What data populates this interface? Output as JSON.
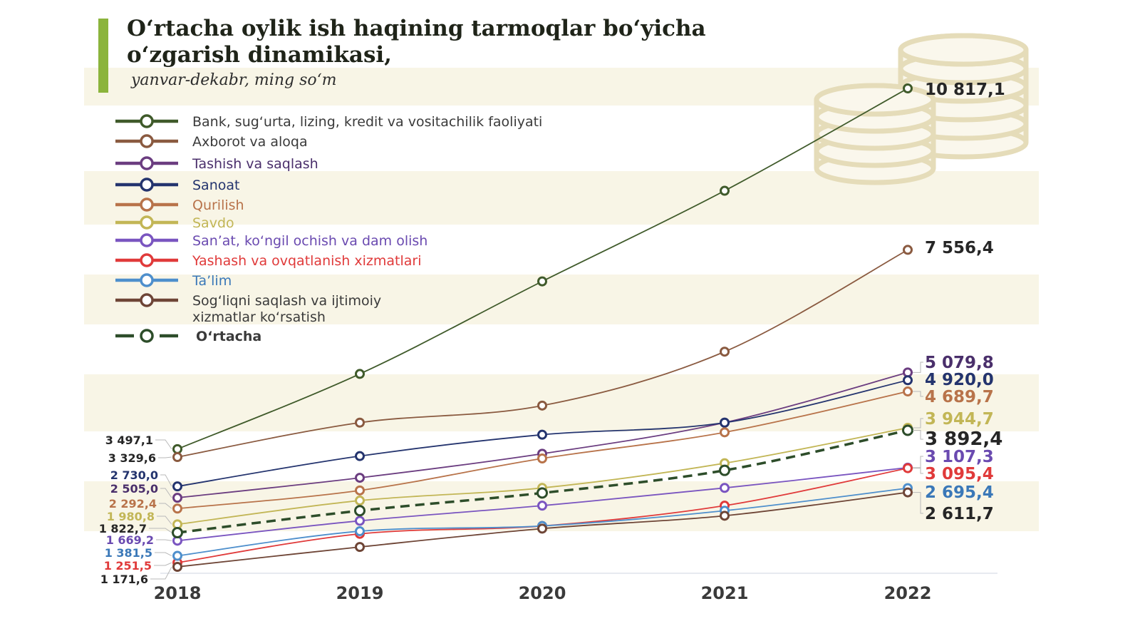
{
  "title": "O‘rtacha oylik ish haqining tarmoqlar bo‘yicha o‘zgarish dinamikasi,",
  "subtitle": "yanvar-dekabr, ming so‘m",
  "chart_data": {
    "type": "line",
    "title": "O‘rtacha oylik ish haqining tarmoqlar bo‘yicha o‘zgarish dinamikasi,",
    "subtitle": "yanvar-dekabr, ming so‘m",
    "xlabel": "",
    "ylabel": "",
    "x": [
      "2018",
      "2019",
      "2020",
      "2021",
      "2022"
    ],
    "ylim": [
      1100,
      11000
    ],
    "grid": false,
    "legend_position": "top-left",
    "series": [
      {
        "name": "Bank, sug‘urta, lizing, kredit va vositachilik faoliyati",
        "color": "#3f5a2a",
        "label_color": "#262626",
        "dashed": false,
        "values": [
          3497.1,
          5050,
          6920,
          8750,
          10817.1
        ],
        "label_start": "3 497,1",
        "label_end": "10 817,1"
      },
      {
        "name": "Axborot va aloqa",
        "color": "#8a5a40",
        "label_color": "#262626",
        "dashed": false,
        "values": [
          3329.6,
          4050,
          4400,
          5500,
          7556.4
        ],
        "label_start": "3 329,6",
        "label_end": "7 556,4"
      },
      {
        "name": "Tashish va saqlash",
        "color": "#6b3d80",
        "label_color": "#4a2f6b",
        "dashed": false,
        "values": [
          2505.0,
          2900,
          3400,
          4050,
          5079.8
        ],
        "label_start": "2 505,0",
        "label_end": "5 079,8"
      },
      {
        "name": "Sanoat",
        "color": "#24346e",
        "label_color": "#24346e",
        "dashed": false,
        "values": [
          2730.0,
          3350,
          3800,
          4050,
          4920.0
        ],
        "label_start": "2 730,0",
        "label_end": "4 920,0"
      },
      {
        "name": "Qurilish",
        "color": "#b8734a",
        "label_color": "#b8734a",
        "dashed": false,
        "values": [
          2292.4,
          2650,
          3300,
          3850,
          4689.7
        ],
        "label_start": "2 292,4",
        "label_end": "4 689,7"
      },
      {
        "name": "Savdo",
        "color": "#c2b656",
        "label_color": "#c2b656",
        "dashed": false,
        "values": [
          1980.8,
          2450,
          2700,
          3200,
          3944.7
        ],
        "label_start": "1 980,8",
        "label_end": "3 944,7"
      },
      {
        "name": "San’at, ko‘ngil ochish va dam olish",
        "color": "#7a55c0",
        "label_color": "#6a4ab0",
        "dashed": false,
        "values": [
          1669.2,
          2050,
          2350,
          2700,
          3107.3
        ],
        "label_start": "1 669,2",
        "label_end": "3 107,3"
      },
      {
        "name": "Yashash va ovqatlanish xizmatlari",
        "color": "#e03a3a",
        "label_color": "#e03a3a",
        "dashed": false,
        "values": [
          1251.5,
          1800,
          1950,
          2350,
          3095.4
        ],
        "label_start": "1 251,5",
        "label_end": "3 095,4"
      },
      {
        "name": "Ta’lim",
        "color": "#4e8fcc",
        "label_color": "#3a78b8",
        "dashed": false,
        "values": [
          1381.5,
          1850,
          1950,
          2250,
          2695.4
        ],
        "label_start": "1 381,5",
        "label_end": "2 695,4"
      },
      {
        "name": "Sog‘liqni saqlash va ijtimoiy xizmatlar ko‘rsatish",
        "color": "#6e4536",
        "label_color": "#262626",
        "dashed": false,
        "values": [
          1171.6,
          1550,
          1900,
          2150,
          2611.7
        ],
        "label_start": "1 171,6",
        "label_end": "2 611,7"
      },
      {
        "name": "O‘rtacha",
        "color": "#2d4d2a",
        "label_color": "#262626",
        "dashed": true,
        "values": [
          1822.7,
          2250,
          2600,
          3050,
          3892.4
        ],
        "label_start": "1 822,7",
        "label_end": "3 892,4"
      }
    ]
  }
}
